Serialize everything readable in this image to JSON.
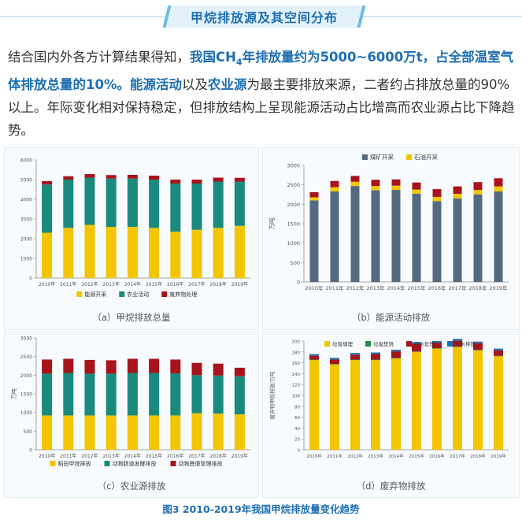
{
  "header": {
    "title": "甲烷排放源及其空间分布"
  },
  "intro": {
    "p1": "结合国内外各方计算结果得知，",
    "b1a": "我国CH",
    "b1sub": "4",
    "b1b": "年排放量约为5000~6000万t，占全部温室气体排放总量的10%。",
    "b2": "能源活动",
    "p2": "以及",
    "b3": "农业源",
    "p3": "为最主要排放来源，二者约占排放总量的90%以上。年际变化相对保持稳定，但排放结构上呈现能源活动占比增高而农业源占比下降趋势。"
  },
  "colors": {
    "yellow": "#f2c500",
    "teal": "#1a8a7c",
    "red": "#a8141c",
    "slate": "#546a80",
    "green": "#2c8a4a",
    "blue": "#1f6fb5"
  },
  "figure_caption": "图3  2010-2019年我国甲烷排放量变化趋势",
  "chart_data": [
    {
      "id": "a",
      "type": "bar",
      "stacked": true,
      "caption": "（a）甲烷排放总量",
      "categories": [
        "2010年",
        "2011年",
        "2012年",
        "2013年",
        "2014年",
        "2015年",
        "2016年",
        "2017年",
        "2018年",
        "2019年"
      ],
      "ylim": [
        0,
        6000
      ],
      "yticks": [
        "0",
        "1000",
        "2000",
        "3000",
        "4000",
        "5000",
        "6000"
      ],
      "ylabel": "",
      "legend_position": "bottom",
      "grid": false,
      "series": [
        {
          "name": "能源开采",
          "color": "#f2c500",
          "values": [
            2300,
            2550,
            2700,
            2600,
            2600,
            2550,
            2350,
            2450,
            2550,
            2650
          ]
        },
        {
          "name": "农业活动",
          "color": "#1a8a7c",
          "values": [
            2450,
            2450,
            2400,
            2450,
            2450,
            2450,
            2450,
            2350,
            2350,
            2250
          ]
        },
        {
          "name": "废弃物处理",
          "color": "#a8141c",
          "values": [
            170,
            170,
            180,
            180,
            190,
            200,
            200,
            200,
            200,
            190
          ]
        }
      ]
    },
    {
      "id": "b",
      "type": "bar",
      "stacked": true,
      "caption": "（b）能源活动排放",
      "categories": [
        "2010年",
        "2011年",
        "2012年",
        "2013年",
        "2014年",
        "2015年",
        "2016年",
        "2017年",
        "2018年",
        "2019年"
      ],
      "ylim": [
        0,
        3000
      ],
      "yticks": [
        "0",
        "500",
        "1000",
        "1500",
        "2000",
        "2500",
        "3000"
      ],
      "ylabel": "万吨",
      "legend_position": "top",
      "grid": false,
      "series": [
        {
          "name": "煤矿开采",
          "color": "#546a80",
          "values": [
            2100,
            2330,
            2470,
            2360,
            2370,
            2270,
            2080,
            2150,
            2250,
            2330
          ]
        },
        {
          "name": "石油开采",
          "color": "#f2c500",
          "values": [
            80,
            110,
            110,
            110,
            110,
            110,
            110,
            120,
            120,
            130
          ]
        },
        {
          "name": "",
          "color": "#a8141c",
          "values": [
            130,
            160,
            150,
            160,
            160,
            180,
            200,
            190,
            200,
            210
          ]
        }
      ]
    },
    {
      "id": "c",
      "type": "bar",
      "stacked": true,
      "caption": "（c）农业源排放",
      "categories": [
        "2010年",
        "2011年",
        "2012年",
        "2013年",
        "2014年",
        "2015年",
        "2016年",
        "2017年",
        "2018年",
        "2019年"
      ],
      "ylim": [
        0,
        3000
      ],
      "yticks": [
        "0",
        "500",
        "1000",
        "1500",
        "2000",
        "2500",
        "3000"
      ],
      "ylabel": "万吨",
      "legend_position": "bottom",
      "grid": false,
      "series": [
        {
          "name": "稻田甲烷排放",
          "color": "#f2c500",
          "values": [
            920,
            920,
            920,
            920,
            920,
            920,
            920,
            980,
            970,
            950
          ]
        },
        {
          "name": "动物肠道发酵排放",
          "color": "#1a8a7c",
          "values": [
            1120,
            1140,
            1120,
            1120,
            1140,
            1140,
            1130,
            1020,
            1020,
            1020
          ]
        },
        {
          "name": "动物粪便管理排放",
          "color": "#a8141c",
          "values": [
            380,
            380,
            370,
            360,
            380,
            380,
            370,
            330,
            320,
            230
          ]
        }
      ]
    },
    {
      "id": "d",
      "type": "bar",
      "stacked": true,
      "caption": "（d）废弃物排放",
      "categories": [
        "2010年",
        "2011年",
        "2012年",
        "2013年",
        "2014年",
        "2015年",
        "2016年",
        "2017年",
        "2018年",
        "2019年"
      ],
      "ylim": [
        0,
        200
      ],
      "yticks": [
        "0",
        "20",
        "40",
        "60",
        "80",
        "100",
        "120",
        "140",
        "160",
        "180",
        "200"
      ],
      "ylabel": "废弃物甲烷排放/万吨",
      "legend_position": "top",
      "grid": false,
      "series": [
        {
          "name": "垃圾填埋",
          "color": "#f2c500",
          "values": [
            165,
            157,
            165,
            165,
            168,
            180,
            186,
            189,
            183,
            172
          ]
        },
        {
          "name": "垃圾焚烧",
          "color": "#2c8a4a",
          "values": [
            1,
            1,
            1,
            1,
            1,
            1,
            1,
            1,
            1,
            1
          ]
        },
        {
          "name": "污水处理",
          "color": "#a8141c",
          "values": [
            7,
            8,
            9,
            10,
            12,
            14,
            10,
            11,
            12,
            10
          ]
        },
        {
          "name": "污水排放",
          "color": "#1f6fb5",
          "values": [
            3,
            3,
            3,
            3,
            3,
            3,
            3,
            3,
            3,
            3
          ]
        }
      ]
    }
  ]
}
